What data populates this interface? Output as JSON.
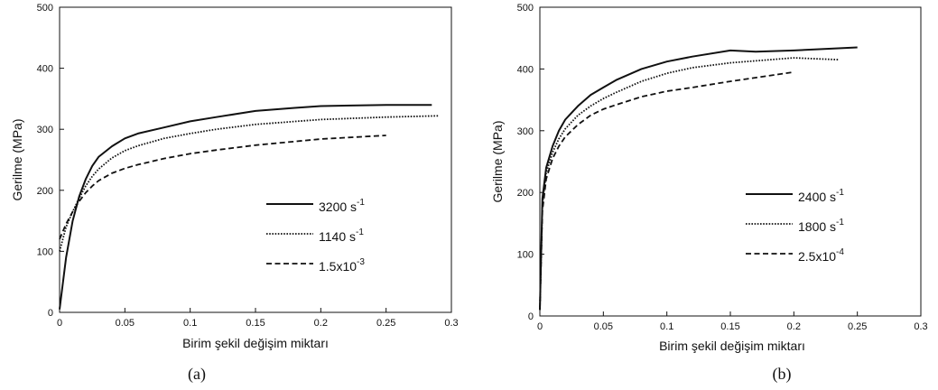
{
  "chart_data": [
    {
      "type": "line",
      "panel_label": "(a)",
      "xlabel": "Birim şekil değişim miktarı",
      "ylabel": "Gerilme (MPa)",
      "xlim": [
        0,
        0.3
      ],
      "ylim": [
        0,
        500
      ],
      "xticks": [
        "0",
        "0.05",
        "0.1",
        "0.15",
        "0.2",
        "0.25",
        "0.3"
      ],
      "yticks": [
        "0",
        "100",
        "200",
        "300",
        "400",
        "500"
      ],
      "grid": false,
      "legend_position": "lower-right",
      "series": [
        {
          "name": "3200 s-1",
          "base": "3200 s",
          "exp": "-1",
          "style": "solid",
          "x": [
            0,
            0.005,
            0.01,
            0.015,
            0.02,
            0.025,
            0.03,
            0.04,
            0.05,
            0.06,
            0.08,
            0.1,
            0.12,
            0.15,
            0.18,
            0.2,
            0.25,
            0.285
          ],
          "y": [
            5,
            90,
            150,
            190,
            218,
            240,
            255,
            272,
            285,
            293,
            303,
            313,
            320,
            330,
            335,
            338,
            340,
            340
          ]
        },
        {
          "name": "1140 s-1",
          "base": "1140 s",
          "exp": "-1",
          "style": "dotted",
          "x": [
            0,
            0.005,
            0.01,
            0.015,
            0.02,
            0.025,
            0.03,
            0.04,
            0.05,
            0.06,
            0.08,
            0.1,
            0.12,
            0.15,
            0.2,
            0.25,
            0.29
          ],
          "y": [
            100,
            140,
            165,
            187,
            207,
            223,
            235,
            253,
            265,
            273,
            285,
            293,
            300,
            308,
            316,
            320,
            322
          ]
        },
        {
          "name": "1.5x10-3",
          "base": "1.5x10",
          "exp": "-3",
          "style": "dashed",
          "x": [
            0,
            0.005,
            0.01,
            0.015,
            0.02,
            0.025,
            0.03,
            0.04,
            0.05,
            0.06,
            0.08,
            0.1,
            0.12,
            0.15,
            0.2,
            0.25
          ],
          "y": [
            120,
            145,
            165,
            182,
            196,
            207,
            216,
            228,
            236,
            242,
            252,
            260,
            266,
            274,
            284,
            290
          ]
        }
      ]
    },
    {
      "type": "line",
      "panel_label": "(b)",
      "xlabel": "Birim şekil değişim miktarı",
      "ylabel": "Gerilme (MPa)",
      "xlim": [
        0,
        0.3
      ],
      "ylim": [
        0,
        500
      ],
      "xticks": [
        "0",
        "0.05",
        "0.1",
        "0.15",
        "0.2",
        "0.25",
        "0.3"
      ],
      "yticks": [
        "0",
        "100",
        "200",
        "300",
        "400",
        "500"
      ],
      "grid": false,
      "legend_position": "lower-right",
      "series": [
        {
          "name": "2400 s-1",
          "base": "2400 s",
          "exp": "-1",
          "style": "solid",
          "x": [
            0,
            0.002,
            0.005,
            0.01,
            0.015,
            0.02,
            0.03,
            0.04,
            0.05,
            0.06,
            0.08,
            0.1,
            0.12,
            0.15,
            0.17,
            0.2,
            0.22,
            0.25
          ],
          "y": [
            10,
            190,
            240,
            275,
            300,
            318,
            340,
            358,
            370,
            382,
            400,
            412,
            420,
            430,
            428,
            430,
            432,
            435
          ]
        },
        {
          "name": "1800 s-1",
          "base": "1800 s",
          "exp": "-1",
          "style": "dotted",
          "x": [
            0,
            0.002,
            0.005,
            0.01,
            0.015,
            0.02,
            0.03,
            0.04,
            0.05,
            0.06,
            0.08,
            0.1,
            0.12,
            0.15,
            0.2,
            0.235
          ],
          "y": [
            10,
            180,
            232,
            265,
            287,
            303,
            325,
            340,
            352,
            362,
            380,
            393,
            402,
            410,
            418,
            415
          ]
        },
        {
          "name": "2.5x10-4",
          "base": "2.5x10",
          "exp": "-4",
          "style": "dashed",
          "x": [
            0,
            0.002,
            0.005,
            0.01,
            0.015,
            0.02,
            0.03,
            0.04,
            0.05,
            0.06,
            0.08,
            0.1,
            0.12,
            0.15,
            0.2
          ],
          "y": [
            10,
            170,
            222,
            255,
            275,
            290,
            310,
            325,
            335,
            342,
            355,
            364,
            370,
            380,
            395
          ]
        }
      ]
    }
  ]
}
